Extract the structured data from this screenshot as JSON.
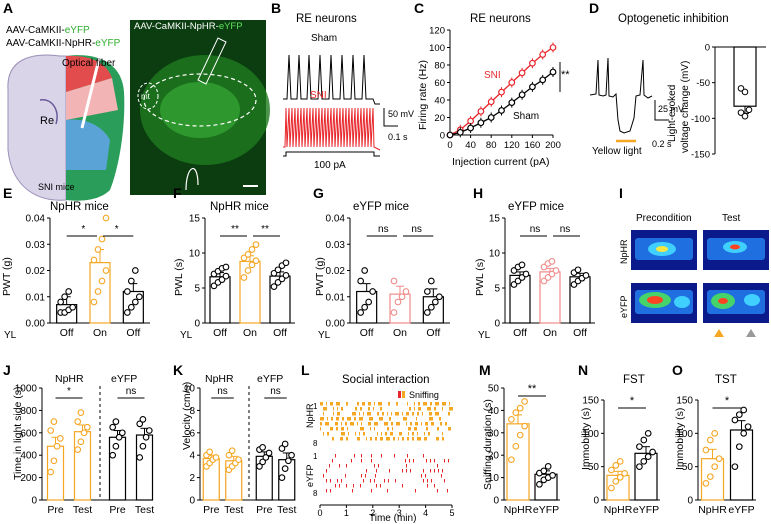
{
  "figure": {
    "colors": {
      "orange": "#f5a623",
      "red": "#e8262b",
      "black": "#000000",
      "pink": "#f08a8a",
      "green": "#2fae2f"
    },
    "panelA": {
      "letter": "A",
      "label_line1_prefix": "AAV-CaMKII-",
      "label_line1_suffix": "eYFP",
      "label_line2_prefix": "AAV-CaMKII-NpHR-",
      "label_line2_suffix": "eYFP",
      "fiber_label": "Optical fiber",
      "region": "Re",
      "mice": "SNI mice",
      "micro_label_prefix": "AAV-CaMKII-NpHR-",
      "micro_label_suffix": "eYFP",
      "mt": "mt"
    },
    "panelB": {
      "letter": "B",
      "title": "RE neurons",
      "sham": "Sham",
      "sni": "SNI",
      "scale_v": "50 mV",
      "scale_t": "0.1 s",
      "current": "100 pA"
    },
    "panelC": {
      "letter": "C",
      "title": "RE neurons",
      "sni": "SNI",
      "sham": "Sham",
      "sig": "**",
      "xlabel": "Injection current (pA)",
      "ylabel": "Firing rate (Hz)"
    },
    "panelD": {
      "letter": "D",
      "title": "Optogenetic inhibition",
      "light": "Yellow light",
      "scale_v": "25 mV",
      "scale_t": "0.2 s",
      "ylabel_1": "Light-evoked",
      "ylabel_2": "voltage change (mV)"
    },
    "panelE": {
      "letter": "E",
      "title": "NpHR mice",
      "ylabel": "PWT (g)",
      "yl": "YL",
      "sig": [
        "*",
        "*"
      ]
    },
    "panelF": {
      "letter": "F",
      "title": "NpHR mice",
      "ylabel": "PWL (s)",
      "yl": "YL",
      "sig": [
        "**",
        "**"
      ]
    },
    "panelG": {
      "letter": "G",
      "title": "eYFP mice",
      "ylabel": "PWT (g)",
      "yl": "YL",
      "sig": [
        "ns",
        "ns"
      ]
    },
    "panelH": {
      "letter": "H",
      "title": "eYFP mice",
      "ylabel": "PWL (s)",
      "yl": "YL",
      "sig": [
        "ns",
        "ns"
      ]
    },
    "panelI": {
      "letter": "I",
      "col1": "Precondition",
      "col2": "Test",
      "row1": "NpHR",
      "row2": "eYFP"
    },
    "panelJ": {
      "letter": "J",
      "ylabel": "Time in light side (s)",
      "g1": "NpHR",
      "g2": "eYFP",
      "sig": [
        "*",
        "ns"
      ]
    },
    "panelK": {
      "letter": "K",
      "ylabel": "Velocity (cm/s)",
      "g1": "NpHR",
      "g2": "eYFP",
      "sig": [
        "ns",
        "ns"
      ]
    },
    "panelL": {
      "letter": "L",
      "title": "Social interaction",
      "legend": "Sniffing",
      "row_top": "NpHR",
      "row_bot": "eYFP",
      "n_first": "1",
      "n_last": "8",
      "xlabel": "Time (min)",
      "xticks": [
        "0",
        "1",
        "2",
        "3",
        "4",
        "5"
      ]
    },
    "panelM": {
      "letter": "M",
      "ylabel": "Sniffing duration (s)",
      "sig": "**"
    },
    "panelN": {
      "letter": "N",
      "title": "FST",
      "ylabel": "Immobility (s)",
      "sig": "*"
    },
    "panelO": {
      "letter": "O",
      "title": "TST",
      "ylabel": "Immobility (s)",
      "sig": "*"
    }
  },
  "chart_data": [
    {
      "id": "C",
      "type": "line",
      "title": "RE neurons",
      "xlabel": "Injection current (pA)",
      "ylabel": "Firing rate (Hz)",
      "x": [
        0,
        20,
        40,
        60,
        80,
        100,
        120,
        140,
        160,
        180,
        200
      ],
      "xticks": [
        0,
        40,
        80,
        120,
        160,
        200
      ],
      "yticks": [
        0,
        20,
        40,
        60,
        80,
        100,
        120
      ],
      "ylim": [
        0,
        120
      ],
      "series": [
        {
          "name": "SNI",
          "color": "#e8262b",
          "values": [
            0,
            6,
            16,
            27,
            38,
            49,
            60,
            71,
            82,
            92,
            100
          ]
        },
        {
          "name": "Sham",
          "color": "#000000",
          "values": [
            0,
            3,
            8,
            14,
            20,
            28,
            37,
            46,
            55,
            63,
            72
          ]
        }
      ]
    },
    {
      "id": "D",
      "type": "bar",
      "ylabel": "Light-evoked voltage change (mV)",
      "yticks": [
        0,
        -50,
        -100,
        -150
      ],
      "ylim": [
        -150,
        0
      ],
      "values": [
        -83
      ],
      "points": [
        -58,
        -63,
        -88,
        -92,
        -97
      ]
    },
    {
      "id": "E",
      "type": "bar",
      "title": "NpHR mice",
      "ylabel": "PWT (g)",
      "categories": [
        "Off",
        "On",
        "Off"
      ],
      "yticks": [
        0.0,
        0.01,
        0.02,
        0.03,
        0.04
      ],
      "ylim": [
        0,
        0.04
      ],
      "values": [
        0.007,
        0.023,
        0.012
      ],
      "errors": [
        0.003,
        0.005,
        0.003
      ],
      "colors": [
        "#000000",
        "#f5a623",
        "#000000"
      ],
      "points": [
        [
          0.004,
          0.004,
          0.005,
          0.006,
          0.008,
          0.01,
          0.012
        ],
        [
          0.008,
          0.012,
          0.016,
          0.02,
          0.024,
          0.028,
          0.032,
          0.04
        ],
        [
          0.004,
          0.006,
          0.008,
          0.01,
          0.012,
          0.016,
          0.02
        ]
      ]
    },
    {
      "id": "F",
      "type": "bar",
      "title": "NpHR mice",
      "ylabel": "PWL (s)",
      "categories": [
        "Off",
        "On",
        "Off"
      ],
      "yticks": [
        0,
        5,
        10,
        15
      ],
      "ylim": [
        0,
        15
      ],
      "values": [
        6.6,
        8.8,
        6.7
      ],
      "errors": [
        0.6,
        0.8,
        0.6
      ],
      "colors": [
        "#000000",
        "#f5a623",
        "#000000"
      ],
      "points": [
        [
          5.3,
          5.8,
          6.2,
          6.7,
          7.0,
          7.4,
          7.8,
          8.0
        ],
        [
          6.5,
          7.5,
          8.3,
          8.9,
          9.3,
          9.8,
          10.5,
          11.2
        ],
        [
          5.2,
          5.8,
          6.3,
          6.8,
          7.1,
          7.6,
          8.2,
          8.6
        ]
      ]
    },
    {
      "id": "G",
      "type": "bar",
      "title": "eYFP mice",
      "ylabel": "PWT (g)",
      "categories": [
        "Off",
        "On",
        "Off"
      ],
      "yticks": [
        0.0,
        0.01,
        0.02,
        0.03,
        0.04
      ],
      "ylim": [
        0,
        0.04
      ],
      "values": [
        0.012,
        0.011,
        0.01
      ],
      "errors": [
        0.003,
        0.003,
        0.003
      ],
      "colors": [
        "#000000",
        "#f08a8a",
        "#000000"
      ],
      "points": [
        [
          0.004,
          0.006,
          0.008,
          0.012,
          0.016,
          0.02
        ],
        [
          0.004,
          0.008,
          0.01,
          0.012,
          0.016
        ],
        [
          0.004,
          0.006,
          0.008,
          0.01,
          0.012,
          0.016
        ]
      ]
    },
    {
      "id": "H",
      "type": "bar",
      "title": "eYFP mice",
      "ylabel": "PWL (s)",
      "categories": [
        "Off",
        "On",
        "Off"
      ],
      "yticks": [
        0,
        5,
        10,
        15
      ],
      "ylim": [
        0,
        15
      ],
      "values": [
        6.8,
        7.3,
        6.6
      ],
      "errors": [
        0.5,
        0.5,
        0.5
      ],
      "colors": [
        "#000000",
        "#f08a8a",
        "#000000"
      ],
      "points": [
        [
          5.5,
          6.0,
          6.5,
          7.0,
          7.5,
          8.0,
          8.3
        ],
        [
          6.0,
          6.5,
          7.0,
          7.5,
          8.0,
          8.5,
          8.8
        ],
        [
          5.5,
          6.0,
          6.4,
          6.8,
          7.2,
          7.6
        ]
      ]
    },
    {
      "id": "J",
      "type": "bar",
      "ylabel": "Time in light side (s)",
      "categories": [
        "Pre",
        "Test",
        "Pre",
        "Test"
      ],
      "yticks": [
        0,
        200,
        400,
        600,
        800,
        1000
      ],
      "ylim": [
        0,
        1000
      ],
      "values": [
        480,
        610,
        560,
        580
      ],
      "errors": [
        80,
        60,
        60,
        60
      ],
      "colors": [
        "#f5a623",
        "#f5a623",
        "#000000",
        "#000000"
      ],
      "points": [
        [
          250,
          350,
          480,
          550,
          620,
          700
        ],
        [
          450,
          520,
          600,
          650,
          700,
          780
        ],
        [
          400,
          480,
          560,
          600,
          650,
          700
        ],
        [
          380,
          480,
          560,
          620,
          680,
          720
        ]
      ]
    },
    {
      "id": "K",
      "type": "bar",
      "ylabel": "Velocity (cm/s)",
      "categories": [
        "Pre",
        "Test",
        "Pre",
        "Test"
      ],
      "yticks": [
        0,
        2,
        4,
        6,
        8,
        10
      ],
      "ylim": [
        0,
        10
      ],
      "values": [
        3.7,
        3.5,
        3.9,
        3.6
      ],
      "errors": [
        0.3,
        0.4,
        0.4,
        0.6
      ],
      "colors": [
        "#f5a623",
        "#f5a623",
        "#000000",
        "#000000"
      ],
      "points": [
        [
          3.0,
          3.3,
          3.6,
          3.8,
          4.0,
          4.3
        ],
        [
          2.7,
          3.0,
          3.3,
          3.6,
          4.0,
          4.4
        ],
        [
          3.0,
          3.4,
          3.8,
          4.2,
          4.5,
          4.7
        ],
        [
          2.0,
          2.8,
          3.5,
          4.0,
          4.6,
          5.0
        ]
      ]
    },
    {
      "id": "M",
      "type": "bar",
      "ylabel": "Sniffing duration (s)",
      "categories": [
        "NpHR",
        "eYFP"
      ],
      "yticks": [
        0,
        10,
        20,
        30,
        40,
        50
      ],
      "ylim": [
        0,
        50
      ],
      "values": [
        34,
        11.5
      ],
      "errors": [
        4,
        1.5
      ],
      "colors": [
        "#f5a623",
        "#000000"
      ],
      "points": [
        [
          18,
          24,
          29,
          33,
          36,
          39,
          41,
          44
        ],
        [
          7,
          9,
          10,
          11,
          12,
          13,
          15
        ]
      ]
    },
    {
      "id": "N",
      "type": "bar",
      "title": "FST",
      "ylabel": "Immobility (s)",
      "categories": [
        "NpHR",
        "eYFP"
      ],
      "yticks": [
        0,
        50,
        100,
        150
      ],
      "ylim": [
        0,
        150
      ],
      "values": [
        37,
        70
      ],
      "errors": [
        6,
        10
      ],
      "colors": [
        "#f5a623",
        "#000000"
      ],
      "points": [
        [
          18,
          28,
          34,
          40,
          45,
          52,
          58
        ],
        [
          50,
          58,
          65,
          72,
          80,
          90,
          100
        ]
      ]
    },
    {
      "id": "O",
      "type": "bar",
      "title": "TST",
      "ylabel": "Immobility (s)",
      "categories": [
        "NpHR",
        "eYFP"
      ],
      "yticks": [
        0,
        50,
        100,
        150
      ],
      "ylim": [
        0,
        150
      ],
      "values": [
        62,
        105
      ],
      "errors": [
        14,
        14
      ],
      "colors": [
        "#f5a623",
        "#000000"
      ],
      "points": [
        [
          25,
          35,
          50,
          62,
          75,
          90,
          100
        ],
        [
          50,
          80,
          100,
          110,
          120,
          128,
          135
        ]
      ]
    }
  ]
}
